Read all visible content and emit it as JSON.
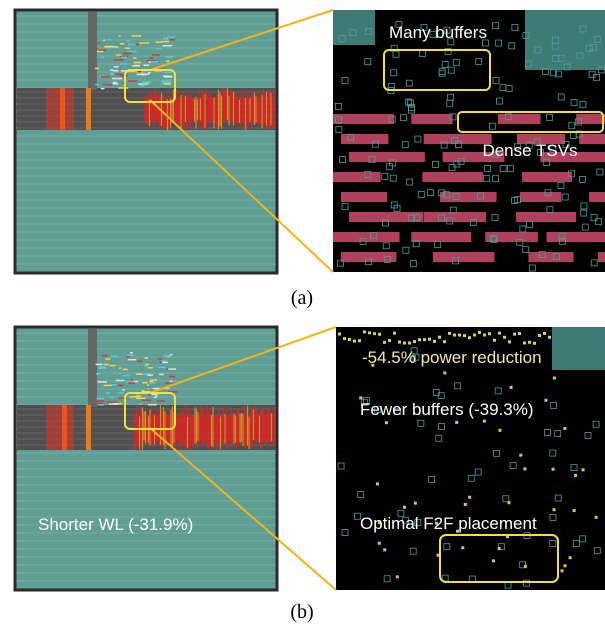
{
  "panel_a": {
    "label": "(a)",
    "annotations": [
      "Many buffers",
      "Dense TSVs"
    ]
  },
  "panel_b": {
    "label": "(b)",
    "left_annotation": "Shorter WL (-31.9%)",
    "annotations": [
      "-54.5% power reduction",
      "Fewer buffers (-39.3%)",
      "Optimal F2F placement"
    ]
  }
}
